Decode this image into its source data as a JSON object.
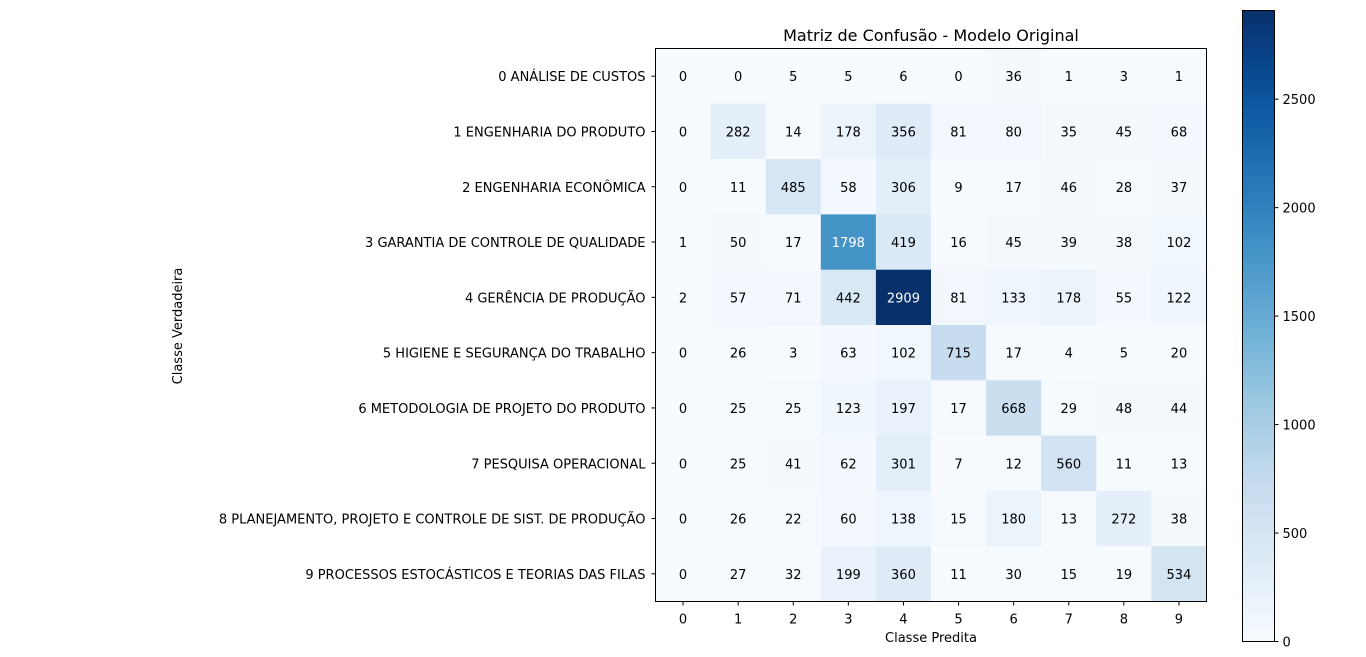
{
  "chart_data": {
    "type": "heatmap",
    "title": "Matriz de Confusão - Modelo Original",
    "xlabel": "Classe Predita",
    "ylabel": "Classe Verdadeira",
    "x_categories": [
      "0",
      "1",
      "2",
      "3",
      "4",
      "5",
      "6",
      "7",
      "8",
      "9"
    ],
    "y_categories": [
      "0 ANÁLISE DE CUSTOS",
      "1 ENGENHARIA DO PRODUTO",
      "2 ENGENHARIA ECONÔMICA",
      "3 GARANTIA DE CONTROLE DE QUALIDADE",
      "4 GERÊNCIA DE PRODUÇÃO",
      "5 HIGIENE E SEGURANÇA DO TRABALHO",
      "6 METODOLOGIA DE PROJETO DO PRODUTO",
      "7 PESQUISA OPERACIONAL",
      "8 PLANEJAMENTO, PROJETO E CONTROLE DE SIST. DE PRODUÇÃO",
      "9 PROCESSOS ESTOCÁSTICOS E TEORIAS DAS FILAS"
    ],
    "values": [
      [
        0,
        0,
        5,
        5,
        6,
        0,
        36,
        1,
        3,
        1
      ],
      [
        0,
        282,
        14,
        178,
        356,
        81,
        80,
        35,
        45,
        68
      ],
      [
        0,
        11,
        485,
        58,
        306,
        9,
        17,
        46,
        28,
        37
      ],
      [
        1,
        50,
        17,
        1798,
        419,
        16,
        45,
        39,
        38,
        102
      ],
      [
        2,
        57,
        71,
        442,
        2909,
        81,
        133,
        178,
        55,
        122
      ],
      [
        0,
        26,
        3,
        63,
        102,
        715,
        17,
        4,
        5,
        20
      ],
      [
        0,
        25,
        25,
        123,
        197,
        17,
        668,
        29,
        48,
        44
      ],
      [
        0,
        25,
        41,
        62,
        301,
        7,
        12,
        560,
        11,
        13
      ],
      [
        0,
        26,
        22,
        60,
        138,
        15,
        180,
        13,
        272,
        38
      ],
      [
        0,
        27,
        32,
        199,
        360,
        11,
        30,
        15,
        19,
        534
      ]
    ],
    "colormap": "Blues",
    "color_range": [
      0,
      2909
    ],
    "colorbar_ticks": [
      0,
      500,
      1000,
      1500,
      2000,
      2500
    ],
    "text_threshold": 1454.5,
    "text_colors": {
      "dark": "#000000",
      "light": "#ffffff"
    },
    "grid": false
  }
}
